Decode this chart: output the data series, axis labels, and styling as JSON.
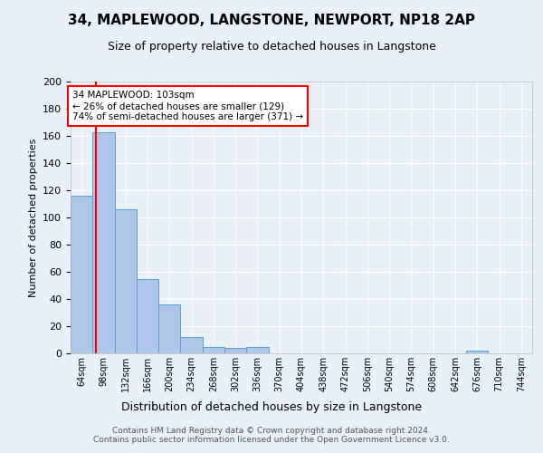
{
  "title": "34, MAPLEWOOD, LANGSTONE, NEWPORT, NP18 2AP",
  "subtitle": "Size of property relative to detached houses in Langstone",
  "xlabel": "Distribution of detached houses by size in Langstone",
  "ylabel": "Number of detached properties",
  "footnote": "Contains HM Land Registry data © Crown copyright and database right 2024.\nContains public sector information licensed under the Open Government Licence v3.0.",
  "bin_labels": [
    "64sqm",
    "98sqm",
    "132sqm",
    "166sqm",
    "200sqm",
    "234sqm",
    "268sqm",
    "302sqm",
    "336sqm",
    "370sqm",
    "404sqm",
    "438sqm",
    "472sqm",
    "506sqm",
    "540sqm",
    "574sqm",
    "608sqm",
    "642sqm",
    "676sqm",
    "710sqm",
    "744sqm"
  ],
  "bar_values": [
    116,
    163,
    106,
    55,
    36,
    12,
    5,
    4,
    5,
    0,
    0,
    0,
    0,
    0,
    0,
    0,
    0,
    0,
    2,
    0,
    0
  ],
  "bar_color": "#aec6e8",
  "bar_edge_color": "#5a9fd4",
  "bg_color": "#e8f0f8",
  "grid_color": "#ffffff",
  "vline_color": "red",
  "annotation_text": "34 MAPLEWOOD: 103sqm\n← 26% of detached houses are smaller (129)\n74% of semi-detached houses are larger (371) →",
  "annotation_box_color": "white",
  "annotation_box_edge_color": "red",
  "ylim": [
    0,
    200
  ],
  "yticks": [
    0,
    20,
    40,
    60,
    80,
    100,
    120,
    140,
    160,
    180,
    200
  ],
  "title_fontsize": 11,
  "subtitle_fontsize": 9,
  "ylabel_fontsize": 8,
  "xlabel_fontsize": 9,
  "tick_fontsize": 8,
  "xtick_fontsize": 7,
  "footnote_fontsize": 6.5,
  "footnote_color": "#555555"
}
